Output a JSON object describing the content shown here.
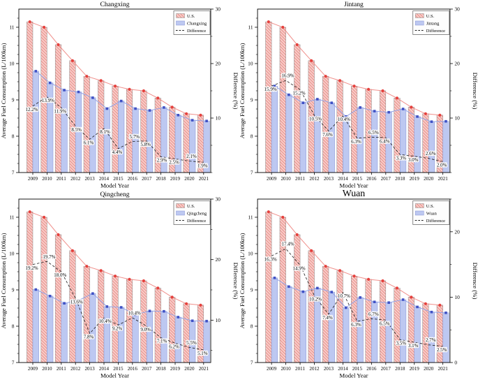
{
  "chart_data": [
    {
      "type": "bar",
      "title": "Changxing",
      "title_size": "normal",
      "xlabel": "Model Year",
      "ylabel_left": "Average Fuel Consumption (L/100km)",
      "ylabel_right": "Difference (%)",
      "x": [
        2009,
        2010,
        2011,
        2012,
        2013,
        2014,
        2015,
        2016,
        2017,
        2018,
        2019,
        2020,
        2021
      ],
      "ylim_left": [
        7,
        11.5
      ],
      "yticks_left": [
        7,
        8,
        9,
        10,
        11
      ],
      "ylim_right": [
        0,
        30
      ],
      "yticks_right": [
        10,
        20,
        30
      ],
      "legend": [
        "U.S.",
        "Changxing",
        "Difference"
      ],
      "legend_position": "upper right",
      "series": [
        {
          "name": "U.S.",
          "role": "us",
          "values": [
            11.15,
            11.0,
            10.52,
            10.08,
            9.65,
            9.53,
            9.38,
            9.29,
            9.25,
            9.05,
            8.8,
            8.62,
            8.58
          ]
        },
        {
          "name": "Changxing",
          "role": "city",
          "values": [
            9.79,
            9.47,
            9.27,
            9.22,
            9.06,
            8.76,
            8.97,
            8.76,
            8.71,
            8.79,
            8.58,
            8.44,
            8.42
          ]
        },
        {
          "name": "Difference",
          "role": "difference",
          "axis": "right",
          "values": [
            12.2,
            13.9,
            11.9,
            8.5,
            6.1,
            8.1,
            4.4,
            5.7,
            5.8,
            2.9,
            2.5,
            2.1,
            1.9
          ],
          "labels": [
            "12.2%",
            "13.9%",
            "11.9%",
            "8.5%",
            "6.1%",
            "8.1%",
            "4.4%",
            "5.7%",
            "5.8%",
            "2.9%",
            "2.5%",
            "2.1%",
            "1.9%"
          ]
        }
      ]
    },
    {
      "type": "bar",
      "title": "Jintang",
      "title_size": "normal",
      "xlabel": "Model Year",
      "ylabel_left": "Average Fuel Consumption (L/100km)",
      "ylabel_right": "Difference (%)",
      "x": [
        2009,
        2010,
        2011,
        2012,
        2013,
        2014,
        2015,
        2016,
        2017,
        2018,
        2019,
        2020,
        2021
      ],
      "ylim_left": [
        7,
        11.5
      ],
      "yticks_left": [
        7,
        8,
        9,
        10,
        11
      ],
      "ylim_right": [
        0,
        30
      ],
      "yticks_right": [
        10,
        20,
        30
      ],
      "legend": [
        "U.S.",
        "Jintang",
        "Difference"
      ],
      "legend_position": "upper right",
      "series": [
        {
          "name": "U.S.",
          "role": "us",
          "values": [
            11.15,
            11.0,
            10.52,
            10.08,
            9.65,
            9.53,
            9.38,
            9.29,
            9.25,
            9.05,
            8.8,
            8.62,
            8.58
          ]
        },
        {
          "name": "Jintang",
          "role": "city",
          "values": [
            9.38,
            9.14,
            8.92,
            9.02,
            8.92,
            8.54,
            8.79,
            8.69,
            8.66,
            8.75,
            8.54,
            8.4,
            8.41
          ]
        },
        {
          "name": "Difference",
          "role": "difference",
          "axis": "right",
          "values": [
            15.9,
            16.9,
            15.2,
            10.5,
            7.6,
            10.4,
            6.3,
            6.5,
            6.4,
            3.3,
            3.0,
            2.6,
            2.0
          ],
          "labels": [
            "15.9%",
            "16.9%",
            "15.2%",
            "10.5%",
            "7.6%",
            "10.4%",
            "6.3%",
            "6.5%",
            "6.4%",
            "3.3%",
            "3.0%",
            "2.6%",
            "2.0%"
          ]
        }
      ]
    },
    {
      "type": "bar",
      "title": "Qingcheng",
      "title_size": "normal",
      "xlabel": "Model Year",
      "ylabel_left": "Average Fuel Consumption (L/100km)",
      "ylabel_right": "Difference (%)",
      "x": [
        2009,
        2010,
        2011,
        2012,
        2013,
        2014,
        2015,
        2016,
        2017,
        2018,
        2019,
        2020,
        2021
      ],
      "ylim_left": [
        7,
        11.5
      ],
      "yticks_left": [
        7,
        8,
        9,
        10,
        11
      ],
      "ylim_right": [
        3,
        30
      ],
      "yticks_right": [
        10,
        20,
        30
      ],
      "legend": [
        "U.S.",
        "Qingcheng",
        "Difference"
      ],
      "legend_position": "upper right",
      "series": [
        {
          "name": "U.S.",
          "role": "us",
          "values": [
            11.15,
            11.0,
            10.52,
            10.08,
            9.65,
            9.53,
            9.38,
            9.29,
            9.25,
            9.05,
            8.8,
            8.62,
            8.58
          ]
        },
        {
          "name": "Qingcheng",
          "role": "city",
          "values": [
            9.01,
            8.83,
            8.63,
            8.71,
            8.9,
            8.54,
            8.52,
            8.32,
            8.42,
            8.41,
            8.25,
            8.15,
            8.14
          ]
        },
        {
          "name": "Difference",
          "role": "difference",
          "axis": "right",
          "values": [
            19.2,
            19.7,
            18.0,
            13.6,
            7.8,
            10.4,
            9.2,
            10.4,
            9.0,
            7.1,
            6.2,
            5.5,
            5.1
          ],
          "labels": [
            "19.2%",
            "19.7%",
            "18.0%",
            "13.6%",
            "7.8%",
            "10.4%",
            "9.2%",
            "10.4%",
            "9.0%",
            "7.1%",
            "6.2%",
            "5.5%",
            "5.1%"
          ]
        }
      ]
    },
    {
      "type": "bar",
      "title": "Wuan",
      "title_size": "large",
      "xlabel": "Model Year",
      "ylabel_left": "Average Fuel Consumption (L/100km)",
      "ylabel_right": "Difference (%)",
      "x": [
        2009,
        2010,
        2011,
        2012,
        2013,
        2014,
        2015,
        2016,
        2017,
        2018,
        2019,
        2020,
        2021
      ],
      "ylim_left": [
        7,
        11.5
      ],
      "yticks_left": [
        7,
        8,
        9,
        10,
        11
      ],
      "ylim_right": [
        0,
        25
      ],
      "yticks_right": [
        0,
        10,
        20
      ],
      "legend": [
        "U.S.",
        "Wuan",
        "Difference"
      ],
      "legend_position": "upper right",
      "series": [
        {
          "name": "U.S.",
          "role": "us",
          "values": [
            11.15,
            11.0,
            10.52,
            10.08,
            9.65,
            9.53,
            9.38,
            9.29,
            9.25,
            9.05,
            8.8,
            8.62,
            8.58
          ]
        },
        {
          "name": "Wuan",
          "role": "city",
          "values": [
            9.33,
            9.09,
            8.95,
            9.05,
            8.94,
            8.51,
            8.79,
            8.67,
            8.65,
            8.73,
            8.53,
            8.39,
            8.37
          ]
        },
        {
          "name": "Difference",
          "role": "difference",
          "axis": "right",
          "values": [
            16.3,
            17.4,
            14.9,
            10.2,
            7.4,
            10.7,
            6.3,
            6.7,
            6.5,
            3.5,
            3.1,
            2.7,
            2.5
          ],
          "labels": [
            "16.3%",
            "17.4%",
            "14.9%",
            "10.2%",
            "7.4%",
            "10.7%",
            "6.3%",
            "6.7%",
            "6.5%",
            "3.5%",
            "3.1%",
            "2.7%",
            "2.5%"
          ]
        }
      ]
    }
  ],
  "colors": {
    "us_bar_fill": "#f9cfcb",
    "us_bar_hatch": "#e8918c",
    "us_bar_edge": "#8a8a8a",
    "us_line": "#f0908c",
    "us_marker": "#e5413d",
    "city_bar_fill": "#bdc8f1",
    "city_bar_edge": "#8593d4",
    "city_line": "#94a3e6",
    "city_marker": "#3f51c5",
    "difference_line": "#1a1a1a",
    "axis": "#000000",
    "legend_border": "#5a5a5a",
    "legend_background": "#fdfdfd"
  }
}
